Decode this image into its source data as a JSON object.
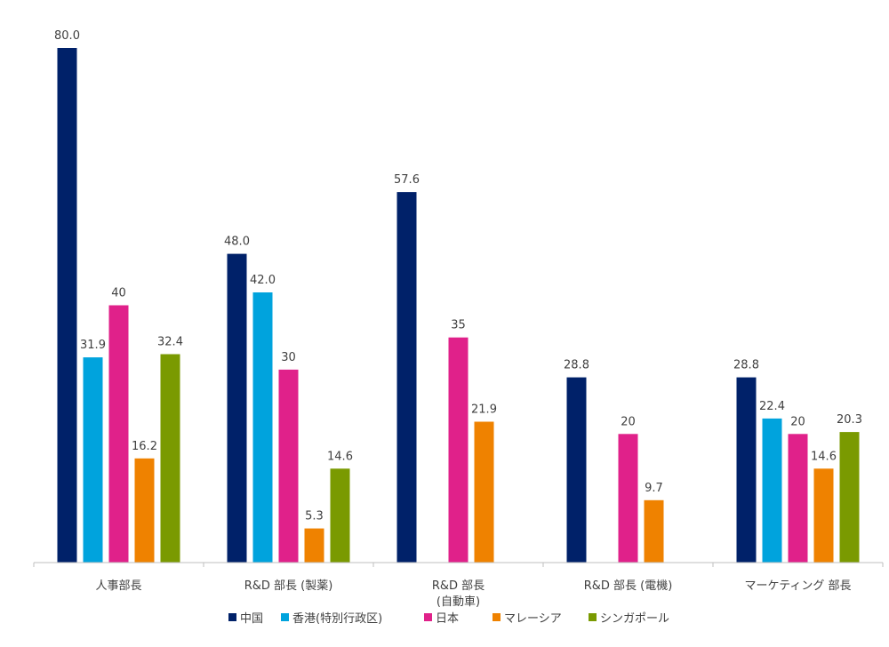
{
  "chart_data": {
    "type": "bar",
    "categories": [
      [
        "人事部長"
      ],
      [
        "R&D 部長 (製薬)"
      ],
      [
        "R&D 部長",
        "(自動車)"
      ],
      [
        "R&D 部長 (電機)"
      ],
      [
        "マーケティング 部長"
      ]
    ],
    "series": [
      {
        "name": "中国",
        "color": "#002169",
        "values": [
          80.0,
          48.0,
          57.6,
          28.8,
          28.8
        ],
        "labels": [
          "80.0",
          "48.0",
          "57.6",
          "28.8",
          "28.8"
        ]
      },
      {
        "name": "香港(特別行政区)",
        "color": "#00A3DD",
        "values": [
          31.9,
          42.0,
          null,
          null,
          22.4
        ],
        "labels": [
          "31.9",
          "42.0",
          null,
          null,
          "22.4"
        ]
      },
      {
        "name": "日本",
        "color": "#E0218A",
        "values": [
          40,
          30,
          35,
          20,
          20
        ],
        "labels": [
          "40",
          "30",
          "35",
          "20",
          "20"
        ]
      },
      {
        "name": "マレーシア",
        "color": "#EF8200",
        "values": [
          16.2,
          5.3,
          21.9,
          9.7,
          14.6
        ],
        "labels": [
          "16.2",
          "5.3",
          "21.9",
          "9.7",
          "14.6"
        ]
      },
      {
        "name": "シンガポール",
        "color": "#7A9A01",
        "values": [
          32.4,
          14.6,
          null,
          null,
          20.3
        ],
        "labels": [
          "32.4",
          "14.6",
          null,
          null,
          "20.3"
        ]
      }
    ],
    "ylim": [
      0,
      80
    ],
    "grid": false,
    "legend_position": "bottom"
  }
}
